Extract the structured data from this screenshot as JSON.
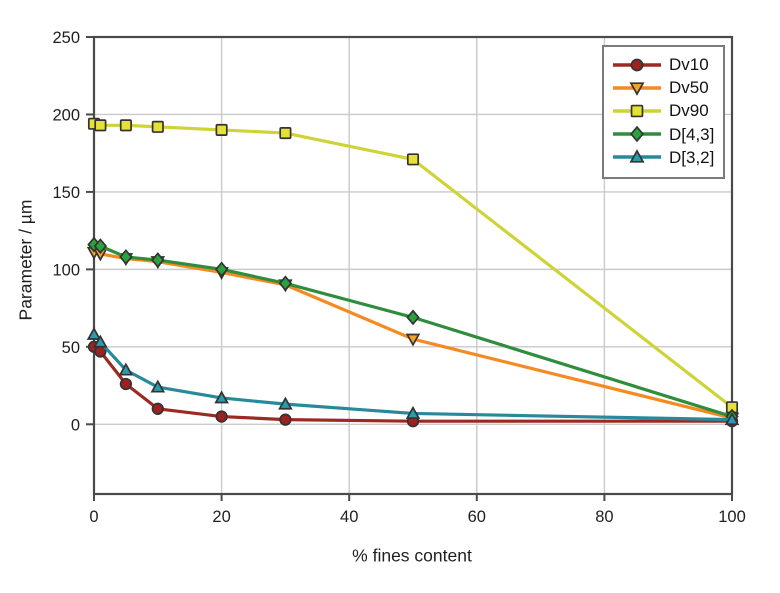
{
  "figure": {
    "background": "#ffffff",
    "frame_color": "#4a4a4a",
    "grid_color": "#cacaca",
    "text_color": "#1f1f1f"
  },
  "chart_data": {
    "type": "line",
    "title": "",
    "xlabel": "% fines content",
    "ylabel": "Parameter / µm",
    "x": [
      0,
      1,
      5,
      10,
      20,
      30,
      50,
      100
    ],
    "series": [
      {
        "name": "Dv10",
        "marker": "circle",
        "line_color": "#9c2a23",
        "marker_color": "#9e2121",
        "values": [
          50,
          47,
          26,
          10,
          5,
          3,
          2,
          2
        ]
      },
      {
        "name": "Dv50",
        "marker": "triangle-down",
        "line_color": "#f68a22",
        "marker_color": "#efa32a",
        "values": [
          111,
          110,
          107,
          105,
          98,
          90,
          55,
          4
        ]
      },
      {
        "name": "Dv90",
        "marker": "square",
        "line_color": "#ced437",
        "marker_color": "#e6e233",
        "values": [
          194,
          193,
          193,
          192,
          190,
          188,
          171,
          11
        ]
      },
      {
        "name": "D[4,3]",
        "marker": "diamond",
        "line_color": "#2f8d3d",
        "marker_color": "#29a23e",
        "values": [
          116,
          115,
          108,
          106,
          100,
          91,
          69,
          5
        ]
      },
      {
        "name": "D[3,2]",
        "marker": "triangle-up",
        "line_color": "#27899a",
        "marker_color": "#2f98a9",
        "values": [
          58,
          53,
          35,
          24,
          17,
          13,
          7,
          3
        ]
      }
    ],
    "xlim": [
      0,
      100
    ],
    "ylim": [
      -45,
      250
    ],
    "x_ticks": [
      0,
      20,
      40,
      60,
      80,
      100
    ],
    "y_ticks": [
      0,
      50,
      100,
      150,
      200,
      250
    ],
    "grid": true,
    "legend_position": "top-right",
    "legend_entries": [
      "Dv10",
      "Dv50",
      "Dv90",
      "D[4,3]",
      "D[3,2]"
    ]
  }
}
